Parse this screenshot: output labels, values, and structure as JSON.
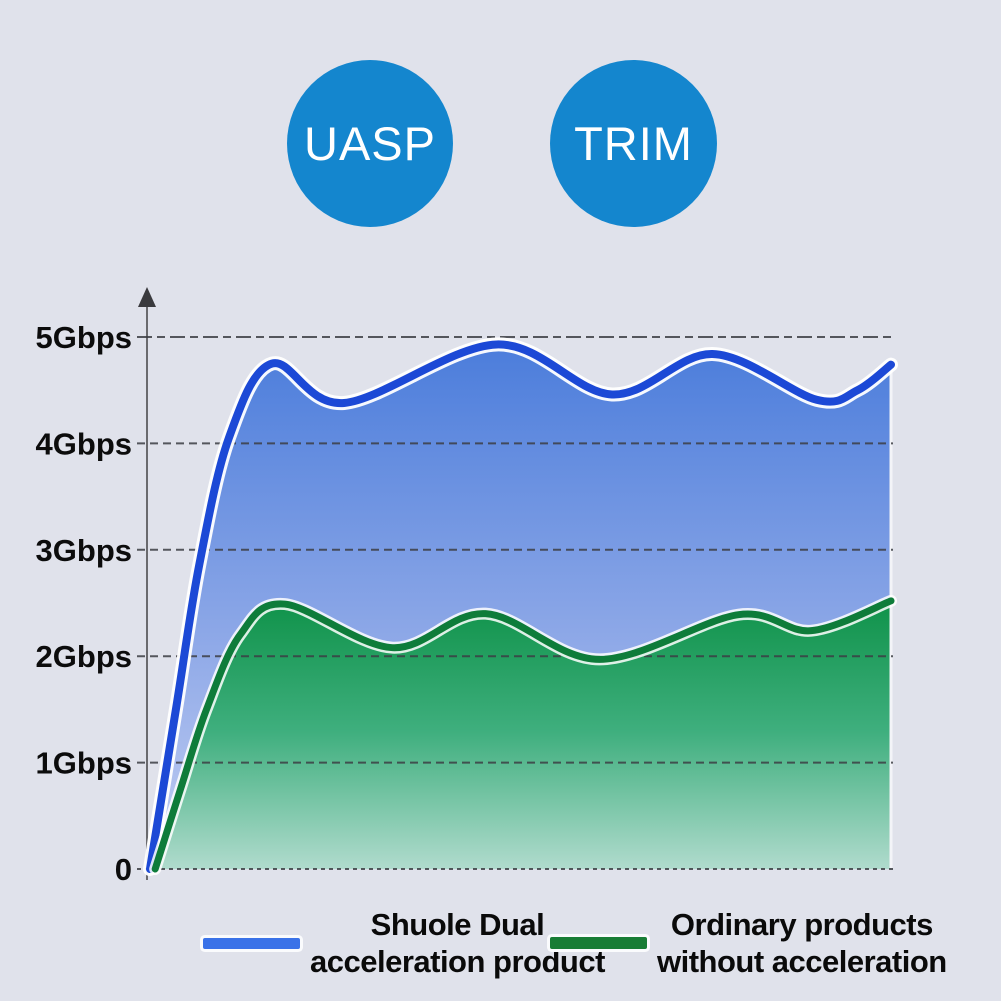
{
  "page": {
    "background": "#e0e2eb"
  },
  "badges": [
    {
      "label": "UASP",
      "color": "#1486ce"
    },
    {
      "label": "TRIM",
      "color": "#1486ce"
    }
  ],
  "chart_data": {
    "type": "area",
    "title": "",
    "xlabel": "",
    "ylabel": "Gbps",
    "ylim": [
      0,
      5
    ],
    "grid": "dashed horizontal",
    "legend_position": "bottom",
    "y_ticks": [
      {
        "label": "5Gbps",
        "value": 5
      },
      {
        "label": "4Gbps",
        "value": 4
      },
      {
        "label": "3Gbps",
        "value": 3
      },
      {
        "label": "2Gbps",
        "value": 2
      },
      {
        "label": "1Gbps",
        "value": 1
      },
      {
        "label": "0",
        "value": 0
      }
    ],
    "series": [
      {
        "name": "Shuole Dual acceleration product",
        "line_color": "#1c49d6",
        "halo_color": "#ffffff",
        "fill_stops": [
          [
            0,
            "#4a7cdb"
          ],
          [
            0.55,
            "#8ca7e7"
          ],
          [
            1,
            "#c3cff3"
          ]
        ],
        "points_x_pct_y_gbps": [
          [
            0.4,
            0
          ],
          [
            4,
            1.55
          ],
          [
            7,
            2.85
          ],
          [
            11,
            4.05
          ],
          [
            16.8,
            4.75
          ],
          [
            26.5,
            4.38
          ],
          [
            47,
            4.93
          ],
          [
            62.5,
            4.46
          ],
          [
            76,
            4.84
          ],
          [
            90,
            4.41
          ],
          [
            95.5,
            4.5
          ],
          [
            100,
            4.74
          ]
        ]
      },
      {
        "name": "Ordinary products without acceleration",
        "line_color": "#0e7c3a",
        "halo_color": "#ffffff",
        "fill_stops": [
          [
            0,
            "#0d9147"
          ],
          [
            0.5,
            "#3faf7e"
          ],
          [
            1,
            "#b0dbcd"
          ]
        ],
        "points_x_pct_y_gbps": [
          [
            1.1,
            0
          ],
          [
            4.5,
            0.75
          ],
          [
            8,
            1.5
          ],
          [
            12.5,
            2.2
          ],
          [
            18.5,
            2.49
          ],
          [
            33,
            2.08
          ],
          [
            45.5,
            2.4
          ],
          [
            60.8,
            1.97
          ],
          [
            79.5,
            2.39
          ],
          [
            89.3,
            2.24
          ],
          [
            100,
            2.52
          ]
        ]
      }
    ],
    "legend": [
      {
        "label_line1": "Shuole Dual",
        "label_line2": "acceleration product",
        "swatch_color": "#3a72e8"
      },
      {
        "label_line1": "Ordinary products",
        "label_line2": "without acceleration",
        "swatch_color": "#187d35"
      }
    ]
  }
}
